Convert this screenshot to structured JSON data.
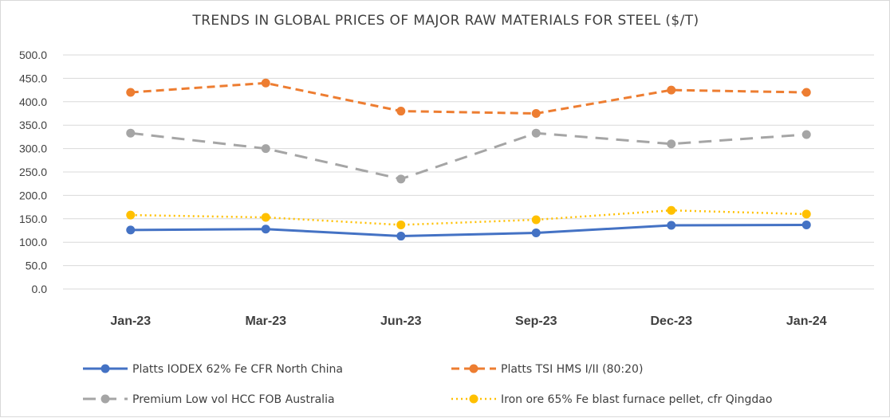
{
  "chart_data": {
    "type": "line",
    "title": "TRENDS IN GLOBAL PRICES OF MAJOR RAW MATERIALS FOR STEEL ($/T)",
    "xlabel": "",
    "ylabel": "",
    "ylim": [
      0,
      500
    ],
    "grid": true,
    "legend_position": "bottom",
    "y_ticks": [
      "0.0",
      "50.0",
      "100.0",
      "150.0",
      "200.0",
      "250.0",
      "300.0",
      "350.0",
      "400.0",
      "450.0",
      "500.0"
    ],
    "categories": [
      "Jan-23",
      "Mar-23",
      "Jun-23",
      "Sep-23",
      "Dec-23",
      "Jan-24"
    ],
    "series": [
      {
        "name": "Platts IODEX 62% Fe CFR North China",
        "color": "#4472c4",
        "style": "solid",
        "values": [
          126,
          128,
          113,
          120,
          136,
          137
        ]
      },
      {
        "name": "Platts TSI HMS I/II (80:20)",
        "color": "#ed7d31",
        "style": "dashed",
        "values": [
          420,
          440,
          380,
          375,
          425,
          420
        ]
      },
      {
        "name": "Premium Low vol HCC FOB Australia",
        "color": "#a5a5a5",
        "style": "longdash",
        "values": [
          333,
          300,
          235,
          333,
          310,
          330
        ]
      },
      {
        "name": "Iron ore 65% Fe blast furnace pellet, cfr Qingdao",
        "color": "#ffc000",
        "style": "dotted",
        "values": [
          158,
          153,
          137,
          148,
          168,
          160
        ]
      }
    ]
  }
}
